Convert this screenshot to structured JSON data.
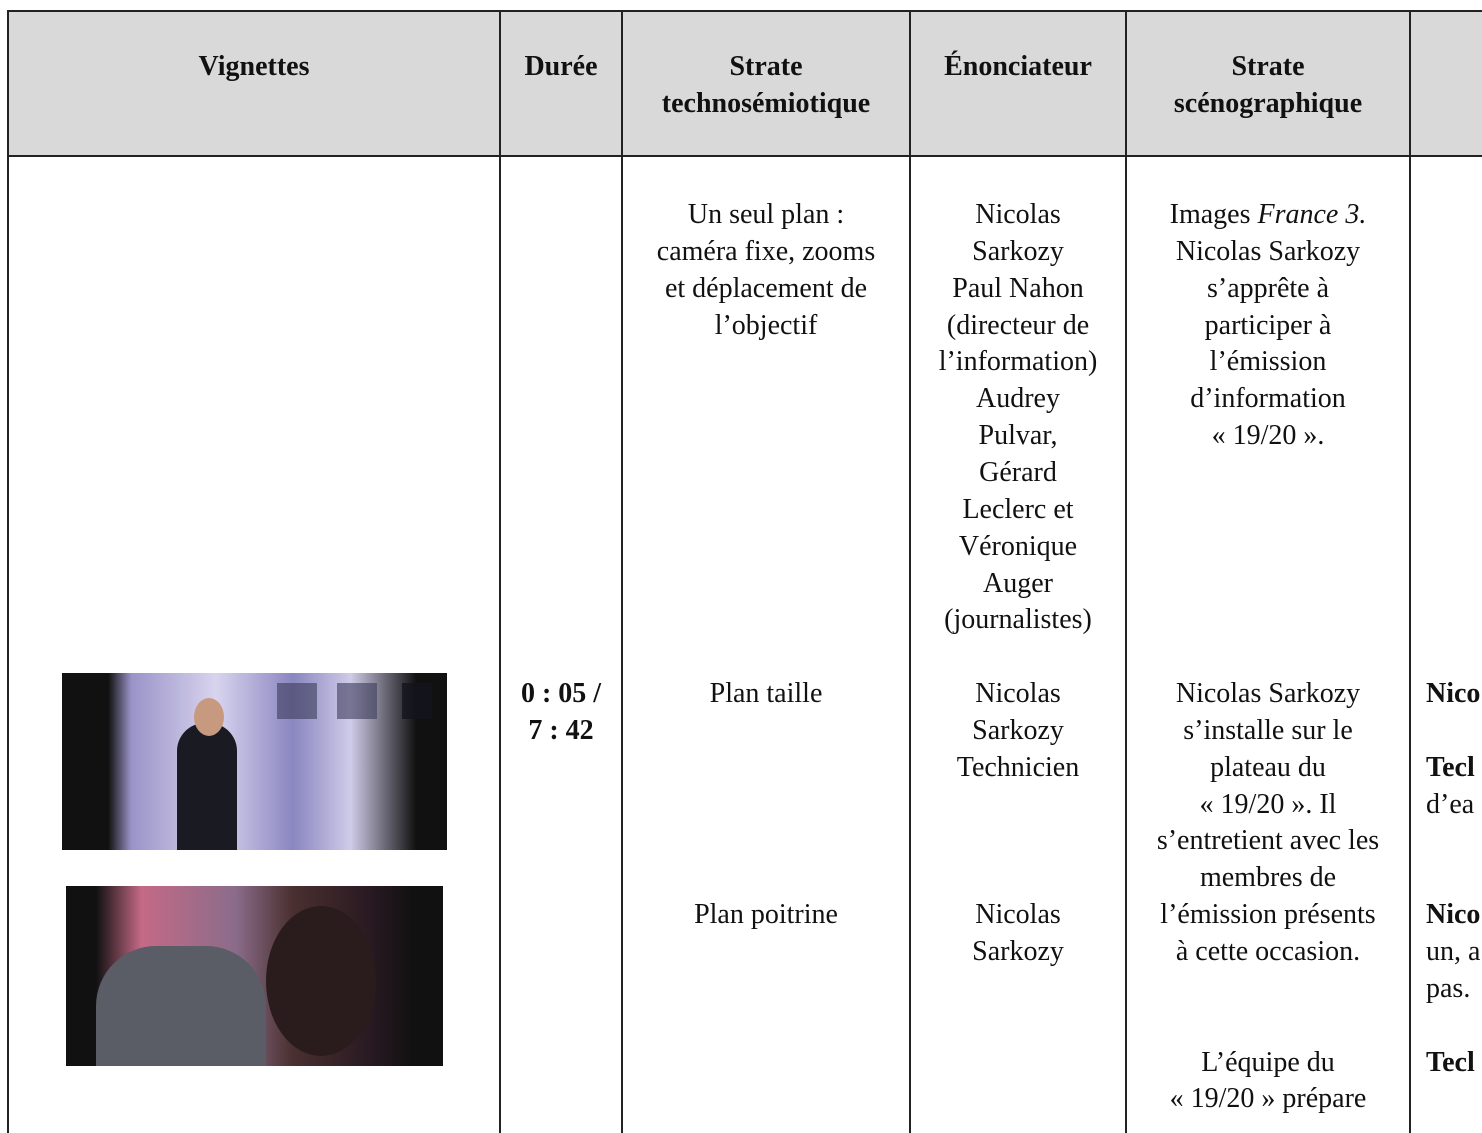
{
  "header": {
    "columns": [
      [
        "Vignettes"
      ],
      [
        "Durée"
      ],
      [
        "Strate",
        "technosémiotique"
      ],
      [
        "Énonciateur"
      ],
      [
        "Strate",
        "scénographique"
      ]
    ]
  },
  "body": {
    "duree": [
      [
        "0 : 05 /",
        "7 : 42"
      ]
    ],
    "strate_technosemiotique": [
      [
        "Un seul plan :",
        "caméra fixe, zooms",
        "et déplacement de",
        "l’objectif"
      ],
      [
        "Plan taille"
      ],
      [
        "Plan poitrine"
      ]
    ],
    "enonciateur": [
      [
        "Nicolas",
        "Sarkozy",
        "Paul Nahon",
        "(directeur de",
        "l’information)",
        "Audrey",
        "Pulvar,",
        "Gérard",
        "Leclerc et",
        "Véronique",
        "Auger",
        "(journalistes)"
      ],
      [
        "Nicolas",
        "Sarkozy",
        "Technicien"
      ],
      [
        "Nicolas",
        "Sarkozy"
      ]
    ],
    "strate_scenographique": [
      [
        [
          "Images",
          "France 3."
        ],
        "Nicolas Sarkozy",
        "s’apprête à",
        "participer à",
        "l’émission",
        "d’information",
        "« 19/20 »."
      ],
      [
        "Nicolas Sarkozy",
        "s’installe sur le",
        "plateau du",
        "« 19/20 ». Il",
        "s’entretient avec les",
        "membres de",
        "l’émission présents",
        "à cette occasion."
      ],
      [
        "L’équipe du",
        "« 19/20 » prépare"
      ]
    ],
    "dialogue": [
      [
        "Nico"
      ],
      [
        "Tecl",
        "d’ea"
      ],
      [
        "Nico",
        "un, a",
        "pas."
      ],
      [
        "Tecl"
      ]
    ]
  }
}
